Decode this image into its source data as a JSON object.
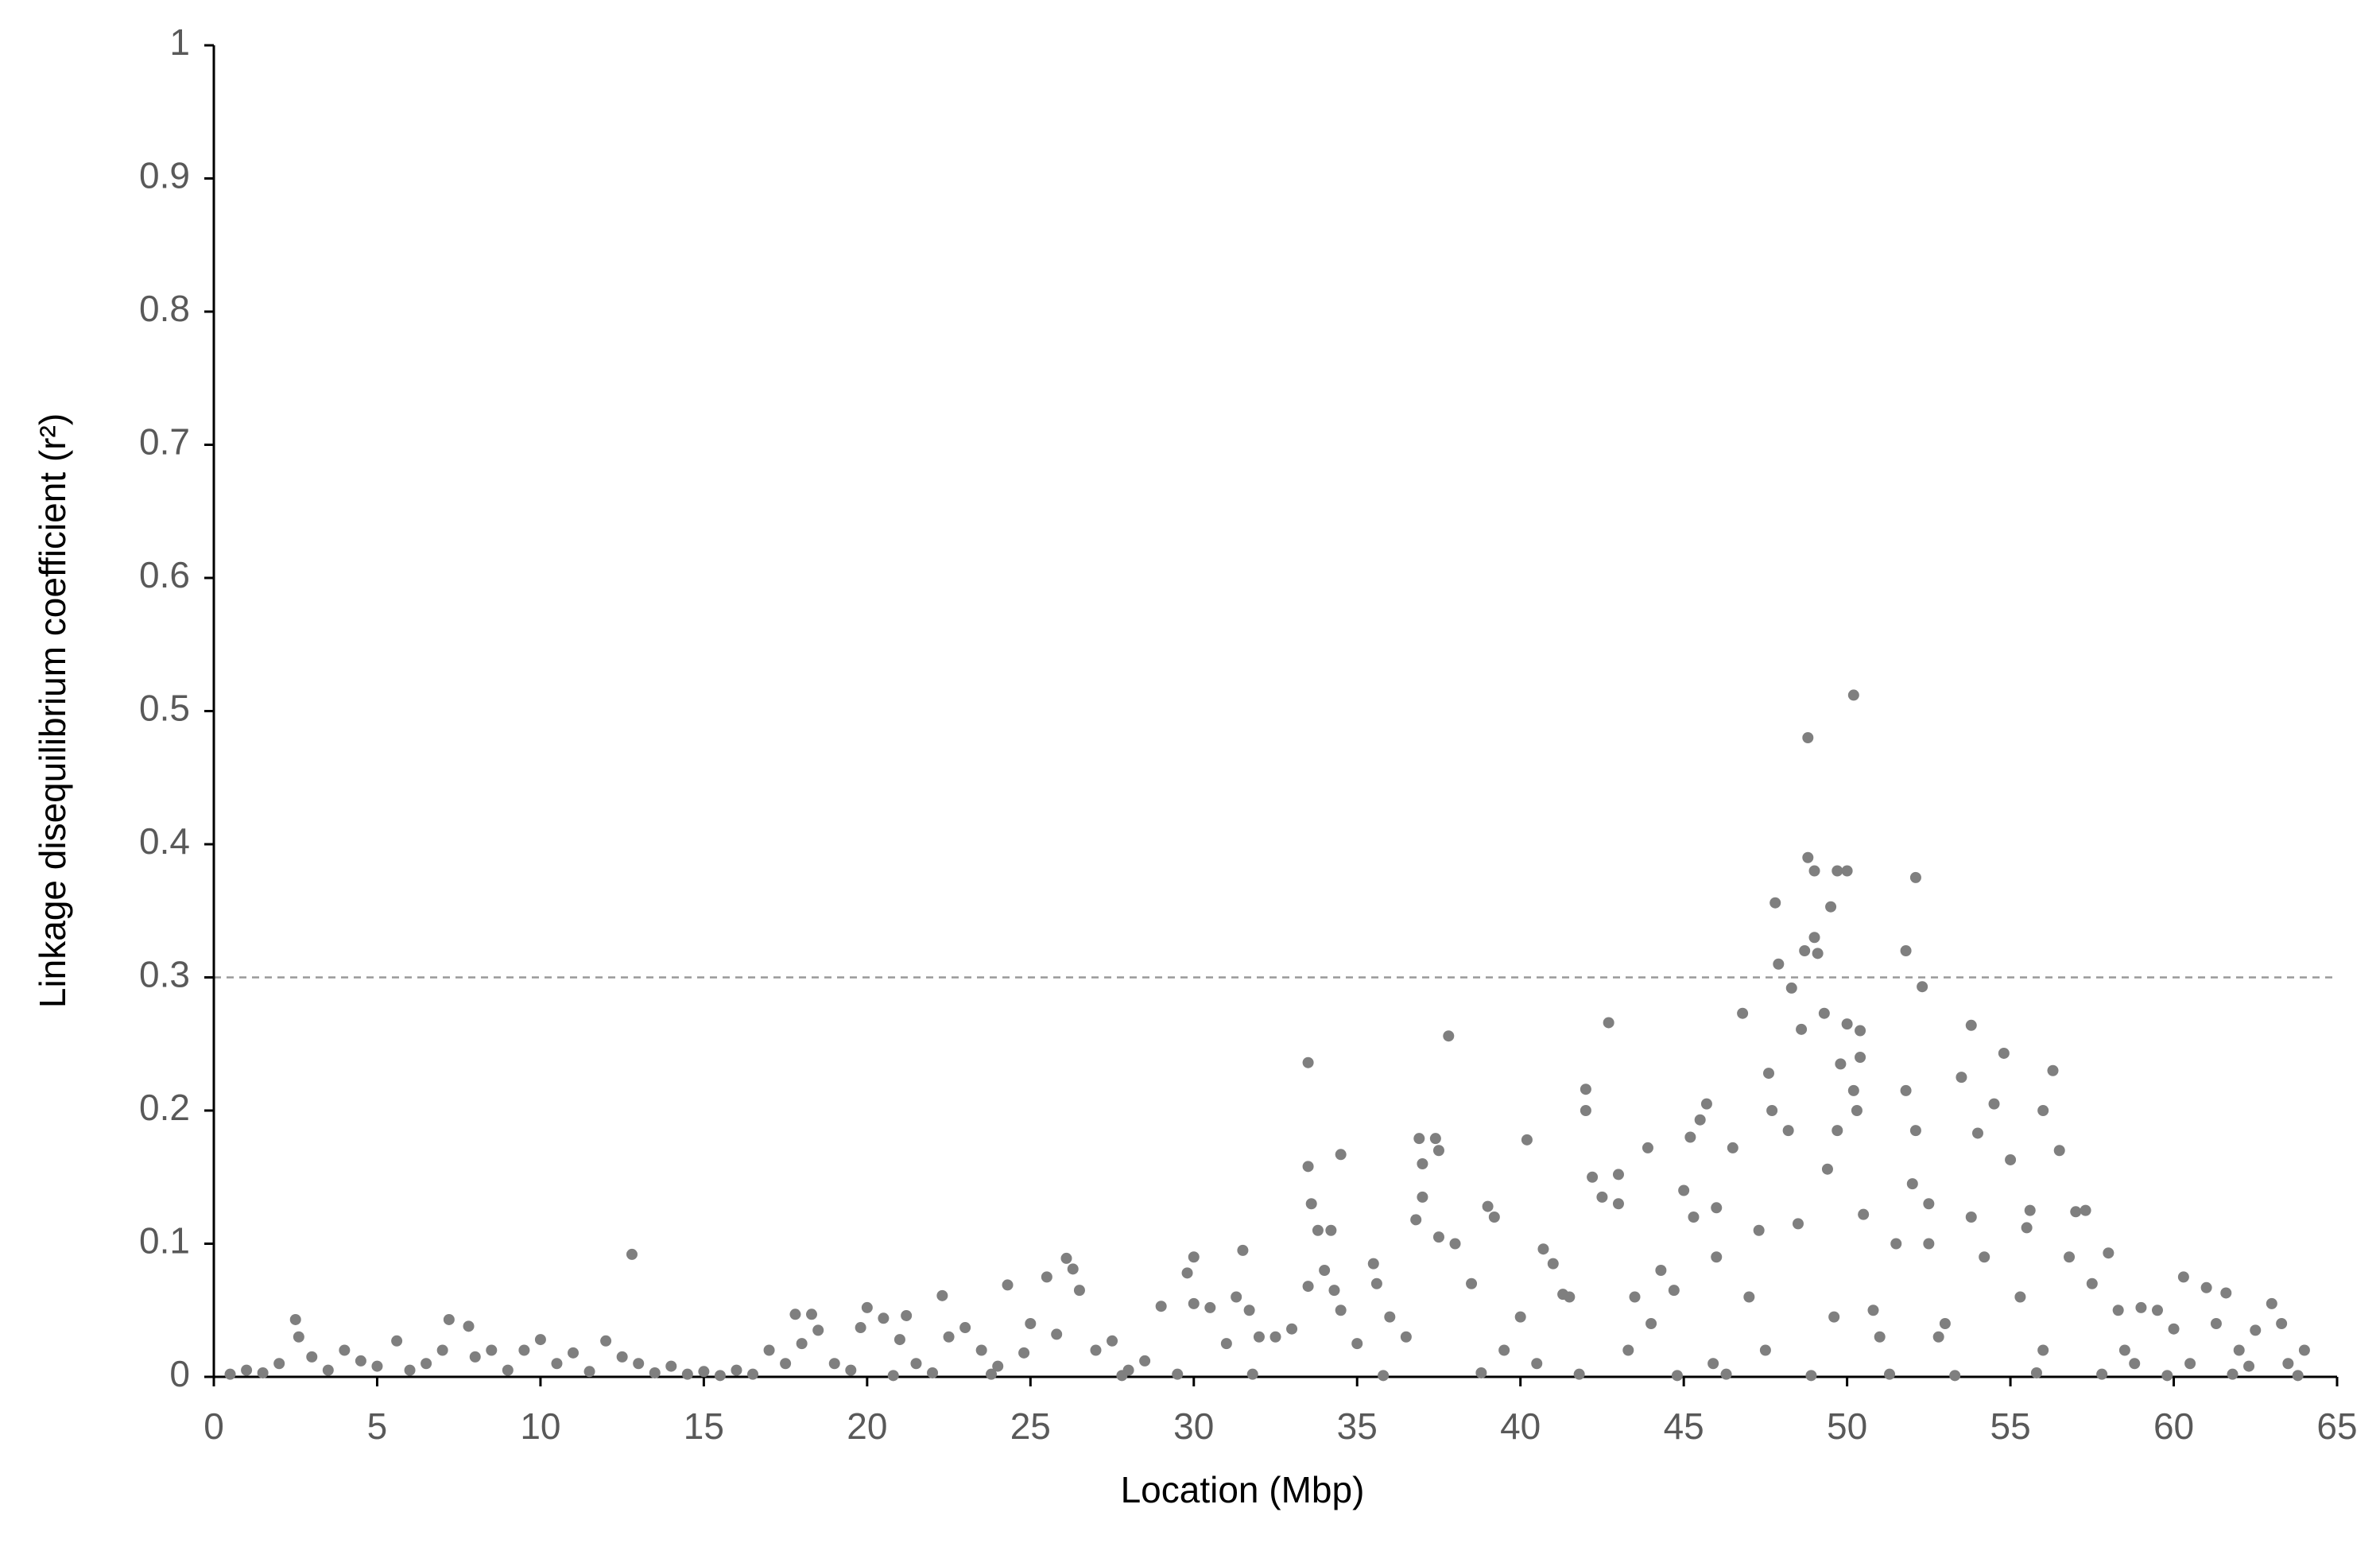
{
  "chart_data": {
    "type": "scatter",
    "x_label": "Location (Mbp)",
    "y_label": "Linkage disequilibrium coefficient (r²)",
    "xlim": [
      0,
      65
    ],
    "xticks": [
      0,
      5,
      10,
      15,
      20,
      25,
      30,
      35,
      40,
      45,
      50,
      55,
      60,
      65
    ],
    "ylim": [
      0,
      1
    ],
    "yticks": [
      0,
      0.1,
      0.2,
      0.3,
      0.4,
      0.5,
      0.6,
      0.7,
      0.8,
      0.9,
      1
    ],
    "threshold": 0.3,
    "grid": false,
    "series": [
      {
        "color": "#7f7f7f",
        "x": [
          0.5,
          1,
          1.5,
          2,
          2.5,
          2.6,
          3,
          3.5,
          4,
          4.5,
          5,
          5.6,
          6,
          6.5,
          7,
          7.2,
          7.8,
          8,
          8.5,
          9,
          9.5,
          10,
          10.5,
          11,
          11.5,
          12,
          12.5,
          12.8,
          13,
          13.5,
          14,
          14.5,
          15,
          15.5,
          16,
          16.5,
          17,
          17.5,
          17.8,
          18,
          18.3,
          18.5,
          19,
          19.5,
          19.8,
          20,
          20.5,
          21,
          21.2,
          21.5,
          22,
          22.3,
          22.5,
          23,
          23.5,
          24,
          24.3,
          24.8,
          25,
          25.5,
          25.8,
          26.1,
          26.3,
          26.5,
          27,
          27.5,
          28,
          28.5,
          29,
          29.5,
          29.8,
          30,
          30,
          30.5,
          31,
          31.3,
          31.5,
          31.7,
          32,
          32.5,
          33,
          33.5,
          33.5,
          33.5,
          33.6,
          33.8,
          34,
          34.2,
          34.3,
          34.5,
          34.5,
          35,
          35.5,
          35.6,
          36,
          36.5,
          36.8,
          36.9,
          37,
          37,
          37.4,
          37.5,
          37.5,
          37.8,
          38,
          38.5,
          39,
          39.2,
          39.5,
          40,
          40.2,
          40.5,
          40.7,
          41,
          41.3,
          41.5,
          42,
          42,
          42.2,
          42.5,
          42.7,
          43,
          43,
          43.5,
          43.9,
          44,
          44.3,
          44.7,
          45,
          45.2,
          45.3,
          45.5,
          45.7,
          46,
          46,
          46.5,
          46.8,
          47,
          47.3,
          47.5,
          47.6,
          47.7,
          47.8,
          47.9,
          48.2,
          48.3,
          48.5,
          48.6,
          48.7,
          48.8,
          48.8,
          49,
          49,
          49.1,
          49.3,
          49.4,
          49.5,
          49.7,
          49.7,
          49.8,
          50,
          50,
          50.2,
          50.2,
          50.3,
          50.4,
          50.4,
          50.5,
          50.8,
          51,
          51.5,
          51.8,
          51.8,
          52,
          52.1,
          52.1,
          52.3,
          52.5,
          52.5,
          53,
          53.5,
          53.8,
          53.8,
          54,
          54.2,
          54.5,
          54.8,
          55,
          55.3,
          55.5,
          55.6,
          56,
          56.3,
          56.5,
          56.8,
          57,
          57.3,
          57.5,
          58,
          58.3,
          58.5,
          59,
          59.5,
          60,
          60.3,
          60.5,
          61,
          61.3,
          61.6,
          62,
          62.5,
          63,
          63.3,
          63.5,
          64,
          20.8,
          23.8,
          27.8,
          31.8,
          35.8,
          38.8,
          41.8,
          44.8,
          46.3,
          48.9,
          51.3,
          53.3,
          55.8,
          57.8,
          59.8,
          61.8,
          63.8,
          43.3,
          45.9,
          49.6,
          52.8,
          56,
          58.8,
          62.3
        ],
        "values": [
          0.002,
          0.005,
          0.003,
          0.01,
          0.043,
          0.03,
          0.015,
          0.005,
          0.02,
          0.012,
          0.008,
          0.027,
          0.005,
          0.01,
          0.02,
          0.043,
          0.038,
          0.015,
          0.02,
          0.005,
          0.02,
          0.028,
          0.01,
          0.018,
          0.004,
          0.027,
          0.015,
          0.092,
          0.01,
          0.003,
          0.008,
          0.002,
          0.004,
          0.001,
          0.005,
          0.002,
          0.02,
          0.01,
          0.047,
          0.025,
          0.047,
          0.035,
          0.01,
          0.005,
          0.037,
          0.052,
          0.044,
          0.028,
          0.046,
          0.01,
          0.003,
          0.061,
          0.03,
          0.037,
          0.02,
          0.008,
          0.069,
          0.018,
          0.04,
          0.075,
          0.032,
          0.089,
          0.081,
          0.065,
          0.02,
          0.027,
          0.005,
          0.012,
          0.053,
          0.002,
          0.078,
          0.09,
          0.055,
          0.052,
          0.025,
          0.06,
          0.095,
          0.05,
          0.03,
          0.03,
          0.036,
          0.068,
          0.236,
          0.158,
          0.13,
          0.11,
          0.08,
          0.11,
          0.065,
          0.167,
          0.05,
          0.025,
          0.085,
          0.07,
          0.045,
          0.03,
          0.118,
          0.179,
          0.16,
          0.135,
          0.179,
          0.17,
          0.105,
          0.256,
          0.1,
          0.07,
          0.128,
          0.12,
          0.02,
          0.045,
          0.178,
          0.01,
          0.096,
          0.085,
          0.062,
          0.06,
          0.216,
          0.2,
          0.15,
          0.135,
          0.266,
          0.13,
          0.152,
          0.06,
          0.172,
          0.04,
          0.08,
          0.065,
          0.14,
          0.18,
          0.12,
          0.193,
          0.205,
          0.127,
          0.09,
          0.172,
          0.273,
          0.06,
          0.11,
          0.02,
          0.228,
          0.2,
          0.356,
          0.31,
          0.185,
          0.292,
          0.115,
          0.261,
          0.32,
          0.39,
          0.48,
          0.38,
          0.33,
          0.318,
          0.273,
          0.156,
          0.353,
          0.38,
          0.185,
          0.235,
          0.38,
          0.265,
          0.512,
          0.215,
          0.2,
          0.26,
          0.24,
          0.122,
          0.05,
          0.03,
          0.1,
          0.32,
          0.215,
          0.145,
          0.375,
          0.185,
          0.293,
          0.13,
          0.1,
          0.04,
          0.225,
          0.264,
          0.12,
          0.183,
          0.09,
          0.205,
          0.243,
          0.163,
          0.06,
          0.112,
          0.125,
          0.2,
          0.23,
          0.17,
          0.09,
          0.124,
          0.125,
          0.07,
          0.093,
          0.05,
          0.02,
          0.052,
          0.05,
          0.036,
          0.075,
          0.01,
          0.067,
          0.04,
          0.063,
          0.02,
          0.035,
          0.055,
          0.04,
          0.01,
          0.02,
          0.001,
          0.002,
          0.001,
          0.002,
          0.001,
          0.003,
          0.002,
          0.001,
          0.002,
          0.001,
          0.002,
          0.001,
          0.003,
          0.002,
          0.001,
          0.002,
          0.001,
          0.02,
          0.01,
          0.045,
          0.03,
          0.02,
          0.01,
          0.008
        ]
      }
    ]
  }
}
